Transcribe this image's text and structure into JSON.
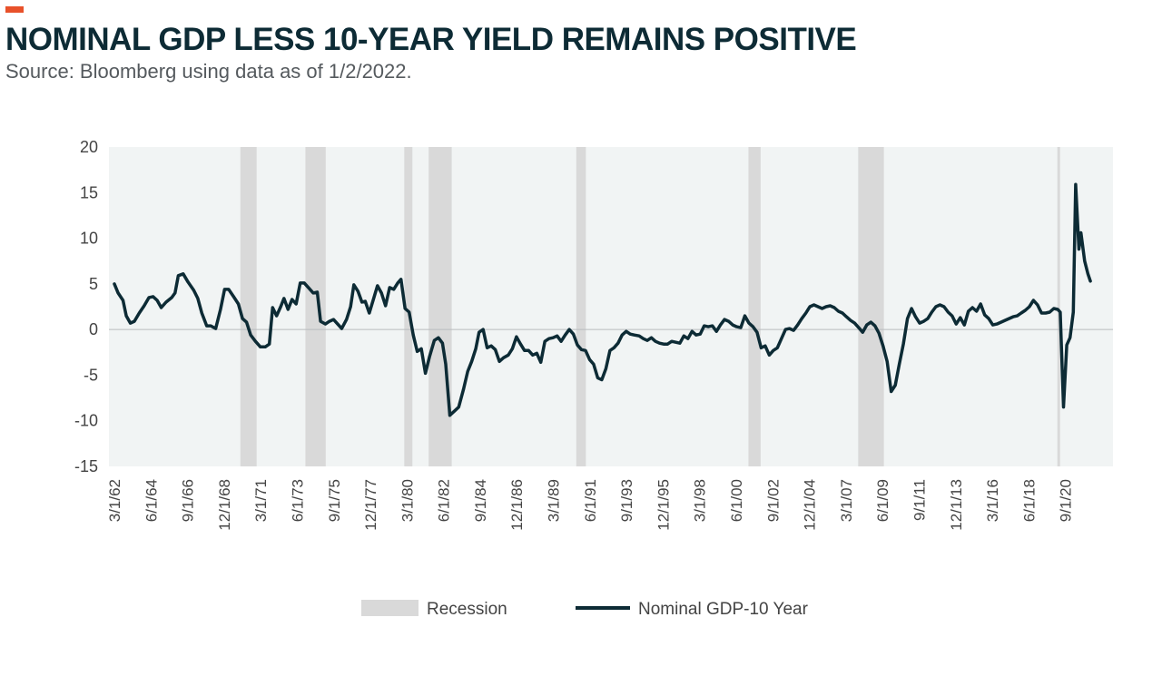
{
  "header": {
    "title": "NOMINAL GDP LESS 10-YEAR YIELD REMAINS POSITIVE",
    "subtitle": "Source: Bloomberg using data as of 1/2/2022."
  },
  "colors": {
    "accent": "#e8512a",
    "line": "#0d2b35",
    "recession": "#d9d9d9",
    "plot_background": "#f1f4f4",
    "title": "#0d2b35"
  },
  "chart_data": {
    "type": "line",
    "title": "NOMINAL GDP LESS 10-YEAR YIELD REMAINS POSITIVE",
    "xlabel": "",
    "ylabel": "",
    "ylim": [
      -15,
      20
    ],
    "xlim": [
      1962.17,
      2021.75
    ],
    "y_ticks": [
      20,
      15,
      10,
      5,
      0,
      -5,
      -10,
      -15
    ],
    "x_ticks": [
      {
        "label": "3/1/62",
        "t": 1962.17
      },
      {
        "label": "6/1/64",
        "t": 1964.42
      },
      {
        "label": "9/1/66",
        "t": 1966.67
      },
      {
        "label": "12/1/68",
        "t": 1968.92
      },
      {
        "label": "3/1/71",
        "t": 1971.17
      },
      {
        "label": "6/1/73",
        "t": 1973.42
      },
      {
        "label": "9/1/75",
        "t": 1975.67
      },
      {
        "label": "12/1/77",
        "t": 1977.92
      },
      {
        "label": "3/1/80",
        "t": 1980.17
      },
      {
        "label": "6/1/82",
        "t": 1982.42
      },
      {
        "label": "9/1/84",
        "t": 1984.67
      },
      {
        "label": "12/1/86",
        "t": 1986.92
      },
      {
        "label": "3/1/89",
        "t": 1989.17
      },
      {
        "label": "6/1/91",
        "t": 1991.42
      },
      {
        "label": "9/1/93",
        "t": 1993.67
      },
      {
        "label": "12/1/95",
        "t": 1995.92
      },
      {
        "label": "3/1/98",
        "t": 1998.17
      },
      {
        "label": "6/1/00",
        "t": 2000.42
      },
      {
        "label": "9/1/02",
        "t": 2002.67
      },
      {
        "label": "12/1/04",
        "t": 2004.92
      },
      {
        "label": "3/1/07",
        "t": 2007.17
      },
      {
        "label": "6/1/09",
        "t": 2009.42
      },
      {
        "label": "9/1/11",
        "t": 2011.67
      },
      {
        "label": "12/1/13",
        "t": 2013.92
      },
      {
        "label": "3/1/16",
        "t": 2016.17
      },
      {
        "label": "6/1/18",
        "t": 2018.42
      },
      {
        "label": "9/1/20",
        "t": 2020.67
      }
    ],
    "recessions": [
      {
        "start": 1969.92,
        "end": 1970.92
      },
      {
        "start": 1973.92,
        "end": 1975.17
      },
      {
        "start": 1980.0,
        "end": 1980.5
      },
      {
        "start": 1981.5,
        "end": 1982.92
      },
      {
        "start": 1990.58,
        "end": 1991.17
      },
      {
        "start": 2001.17,
        "end": 2001.92
      },
      {
        "start": 2007.92,
        "end": 2009.5
      },
      {
        "start": 2020.17,
        "end": 2020.33
      }
    ],
    "legend": [
      {
        "label": "Recession",
        "kind": "area"
      },
      {
        "label": "Nominal GDP-10 Year",
        "kind": "line"
      }
    ],
    "legend_position": "bottom-center",
    "series": [
      {
        "name": "Nominal GDP-10 Year",
        "points": [
          [
            1962.17,
            5.0
          ],
          [
            1962.4,
            4.0
          ],
          [
            1962.7,
            3.2
          ],
          [
            1962.9,
            1.5
          ],
          [
            1963.15,
            0.7
          ],
          [
            1963.4,
            0.9
          ],
          [
            1963.7,
            1.8
          ],
          [
            1964.0,
            2.6
          ],
          [
            1964.3,
            3.5
          ],
          [
            1964.55,
            3.6
          ],
          [
            1964.8,
            3.2
          ],
          [
            1965.05,
            2.4
          ],
          [
            1965.35,
            3.0
          ],
          [
            1965.7,
            3.5
          ],
          [
            1965.9,
            4.0
          ],
          [
            1966.1,
            5.9
          ],
          [
            1966.4,
            6.1
          ],
          [
            1966.7,
            5.2
          ],
          [
            1967.05,
            4.3
          ],
          [
            1967.3,
            3.4
          ],
          [
            1967.55,
            1.8
          ],
          [
            1967.85,
            0.4
          ],
          [
            1968.1,
            0.4
          ],
          [
            1968.4,
            0.1
          ],
          [
            1968.7,
            2.2
          ],
          [
            1968.95,
            4.4
          ],
          [
            1969.2,
            4.4
          ],
          [
            1969.5,
            3.6
          ],
          [
            1969.8,
            2.8
          ],
          [
            1970.05,
            1.2
          ],
          [
            1970.3,
            0.8
          ],
          [
            1970.55,
            -0.6
          ],
          [
            1970.85,
            -1.3
          ],
          [
            1971.15,
            -1.9
          ],
          [
            1971.45,
            -1.9
          ],
          [
            1971.7,
            -1.6
          ],
          [
            1971.9,
            2.4
          ],
          [
            1972.15,
            1.5
          ],
          [
            1972.4,
            2.5
          ],
          [
            1972.6,
            3.4
          ],
          [
            1972.85,
            2.2
          ],
          [
            1973.1,
            3.3
          ],
          [
            1973.35,
            2.8
          ],
          [
            1973.6,
            5.1
          ],
          [
            1973.85,
            5.1
          ],
          [
            1974.1,
            4.6
          ],
          [
            1974.4,
            4.0
          ],
          [
            1974.65,
            4.1
          ],
          [
            1974.85,
            0.9
          ],
          [
            1975.15,
            0.6
          ],
          [
            1975.4,
            0.9
          ],
          [
            1975.65,
            1.1
          ],
          [
            1975.9,
            0.6
          ],
          [
            1976.15,
            0.1
          ],
          [
            1976.45,
            1.1
          ],
          [
            1976.7,
            2.5
          ],
          [
            1976.9,
            4.9
          ],
          [
            1977.15,
            4.2
          ],
          [
            1977.4,
            3.0
          ],
          [
            1977.6,
            3.1
          ],
          [
            1977.85,
            1.8
          ],
          [
            1978.1,
            3.3
          ],
          [
            1978.35,
            4.8
          ],
          [
            1978.6,
            4.0
          ],
          [
            1978.85,
            2.6
          ],
          [
            1979.1,
            4.6
          ],
          [
            1979.35,
            4.4
          ],
          [
            1979.6,
            5.1
          ],
          [
            1979.8,
            5.5
          ],
          [
            1980.05,
            2.3
          ],
          [
            1980.3,
            1.9
          ],
          [
            1980.55,
            -0.6
          ],
          [
            1980.8,
            -2.4
          ],
          [
            1981.05,
            -2.1
          ],
          [
            1981.3,
            -4.8
          ],
          [
            1981.55,
            -3.0
          ],
          [
            1981.85,
            -1.2
          ],
          [
            1982.1,
            -0.9
          ],
          [
            1982.35,
            -1.5
          ],
          [
            1982.55,
            -3.8
          ],
          [
            1982.8,
            -9.4
          ],
          [
            1983.05,
            -9.0
          ],
          [
            1983.35,
            -8.5
          ],
          [
            1983.65,
            -6.5
          ],
          [
            1983.9,
            -4.6
          ],
          [
            1984.15,
            -3.5
          ],
          [
            1984.4,
            -2.1
          ],
          [
            1984.6,
            -0.3
          ],
          [
            1984.85,
            0.0
          ],
          [
            1985.1,
            -2.0
          ],
          [
            1985.35,
            -1.8
          ],
          [
            1985.6,
            -2.2
          ],
          [
            1985.85,
            -3.5
          ],
          [
            1986.1,
            -3.1
          ],
          [
            1986.4,
            -2.8
          ],
          [
            1986.65,
            -2.1
          ],
          [
            1986.9,
            -0.8
          ],
          [
            1987.15,
            -1.6
          ],
          [
            1987.4,
            -2.3
          ],
          [
            1987.65,
            -2.3
          ],
          [
            1987.9,
            -2.8
          ],
          [
            1988.15,
            -2.6
          ],
          [
            1988.4,
            -3.6
          ],
          [
            1988.65,
            -1.3
          ],
          [
            1988.9,
            -1.0
          ],
          [
            1989.15,
            -0.9
          ],
          [
            1989.4,
            -0.7
          ],
          [
            1989.65,
            -1.3
          ],
          [
            1989.9,
            -0.6
          ],
          [
            1990.15,
            0.0
          ],
          [
            1990.4,
            -0.5
          ],
          [
            1990.65,
            -1.7
          ],
          [
            1990.9,
            -2.2
          ],
          [
            1991.15,
            -2.3
          ],
          [
            1991.4,
            -3.3
          ],
          [
            1991.65,
            -3.8
          ],
          [
            1991.9,
            -5.3
          ],
          [
            1992.15,
            -5.5
          ],
          [
            1992.4,
            -4.3
          ],
          [
            1992.65,
            -2.3
          ],
          [
            1992.9,
            -2.0
          ],
          [
            1993.15,
            -1.5
          ],
          [
            1993.4,
            -0.6
          ],
          [
            1993.65,
            -0.2
          ],
          [
            1993.9,
            -0.5
          ],
          [
            1994.15,
            -0.6
          ],
          [
            1994.45,
            -0.7
          ],
          [
            1994.7,
            -1.0
          ],
          [
            1994.95,
            -1.2
          ],
          [
            1995.2,
            -0.9
          ],
          [
            1995.45,
            -1.3
          ],
          [
            1995.7,
            -1.5
          ],
          [
            1995.95,
            -1.6
          ],
          [
            1996.2,
            -1.6
          ],
          [
            1996.45,
            -1.3
          ],
          [
            1996.7,
            -1.4
          ],
          [
            1996.95,
            -1.5
          ],
          [
            1997.2,
            -0.7
          ],
          [
            1997.45,
            -1.0
          ],
          [
            1997.7,
            -0.2
          ],
          [
            1997.95,
            -0.6
          ],
          [
            1998.2,
            -0.5
          ],
          [
            1998.45,
            0.4
          ],
          [
            1998.7,
            0.3
          ],
          [
            1998.95,
            0.4
          ],
          [
            1999.2,
            -0.2
          ],
          [
            1999.45,
            0.5
          ],
          [
            1999.7,
            1.1
          ],
          [
            1999.95,
            0.9
          ],
          [
            2000.2,
            0.5
          ],
          [
            2000.45,
            0.3
          ],
          [
            2000.7,
            0.2
          ],
          [
            2000.95,
            1.5
          ],
          [
            2001.2,
            0.7
          ],
          [
            2001.45,
            0.3
          ],
          [
            2001.7,
            -0.3
          ],
          [
            2001.95,
            -2.0
          ],
          [
            2002.2,
            -1.8
          ],
          [
            2002.45,
            -2.8
          ],
          [
            2002.7,
            -2.3
          ],
          [
            2002.95,
            -2.0
          ],
          [
            2003.2,
            -1.0
          ],
          [
            2003.45,
            0.0
          ],
          [
            2003.7,
            0.1
          ],
          [
            2003.95,
            -0.1
          ],
          [
            2004.2,
            0.5
          ],
          [
            2004.45,
            1.2
          ],
          [
            2004.7,
            1.8
          ],
          [
            2004.95,
            2.5
          ],
          [
            2005.2,
            2.7
          ],
          [
            2005.45,
            2.5
          ],
          [
            2005.7,
            2.3
          ],
          [
            2005.95,
            2.5
          ],
          [
            2006.2,
            2.6
          ],
          [
            2006.45,
            2.4
          ],
          [
            2006.7,
            2.0
          ],
          [
            2006.95,
            1.8
          ],
          [
            2007.2,
            1.4
          ],
          [
            2007.45,
            1.0
          ],
          [
            2007.7,
            0.7
          ],
          [
            2007.95,
            0.2
          ],
          [
            2008.2,
            -0.3
          ],
          [
            2008.45,
            0.5
          ],
          [
            2008.7,
            0.8
          ],
          [
            2008.95,
            0.4
          ],
          [
            2009.2,
            -0.4
          ],
          [
            2009.45,
            -1.8
          ],
          [
            2009.7,
            -3.5
          ],
          [
            2009.95,
            -6.8
          ],
          [
            2010.2,
            -6.1
          ],
          [
            2010.45,
            -3.8
          ],
          [
            2010.7,
            -1.6
          ],
          [
            2010.95,
            1.2
          ],
          [
            2011.2,
            2.3
          ],
          [
            2011.45,
            1.4
          ],
          [
            2011.7,
            0.7
          ],
          [
            2011.95,
            0.9
          ],
          [
            2012.2,
            1.2
          ],
          [
            2012.45,
            1.9
          ],
          [
            2012.7,
            2.5
          ],
          [
            2012.95,
            2.7
          ],
          [
            2013.2,
            2.5
          ],
          [
            2013.45,
            1.9
          ],
          [
            2013.7,
            1.5
          ],
          [
            2013.95,
            0.6
          ],
          [
            2014.2,
            1.3
          ],
          [
            2014.45,
            0.5
          ],
          [
            2014.7,
            2.0
          ],
          [
            2014.95,
            2.4
          ],
          [
            2015.2,
            2.0
          ],
          [
            2015.45,
            2.8
          ],
          [
            2015.7,
            1.6
          ],
          [
            2015.95,
            1.2
          ],
          [
            2016.2,
            0.5
          ],
          [
            2016.45,
            0.6
          ],
          [
            2016.7,
            0.8
          ],
          [
            2016.95,
            1.0
          ],
          [
            2017.2,
            1.2
          ],
          [
            2017.45,
            1.4
          ],
          [
            2017.7,
            1.5
          ],
          [
            2017.95,
            1.8
          ],
          [
            2018.2,
            2.1
          ],
          [
            2018.45,
            2.5
          ],
          [
            2018.7,
            3.2
          ],
          [
            2018.95,
            2.7
          ],
          [
            2019.2,
            1.8
          ],
          [
            2019.45,
            1.8
          ],
          [
            2019.7,
            1.9
          ],
          [
            2019.95,
            2.3
          ],
          [
            2020.2,
            2.2
          ],
          [
            2020.35,
            1.9
          ],
          [
            2020.55,
            -8.5
          ],
          [
            2020.75,
            -1.7
          ],
          [
            2020.95,
            -0.9
          ],
          [
            2021.15,
            1.9
          ],
          [
            2021.3,
            15.9
          ],
          [
            2021.5,
            8.8
          ],
          [
            2021.62,
            10.6
          ],
          [
            2021.85,
            7.5
          ],
          [
            2022.05,
            6.1
          ],
          [
            2022.2,
            5.3
          ]
        ]
      }
    ]
  }
}
